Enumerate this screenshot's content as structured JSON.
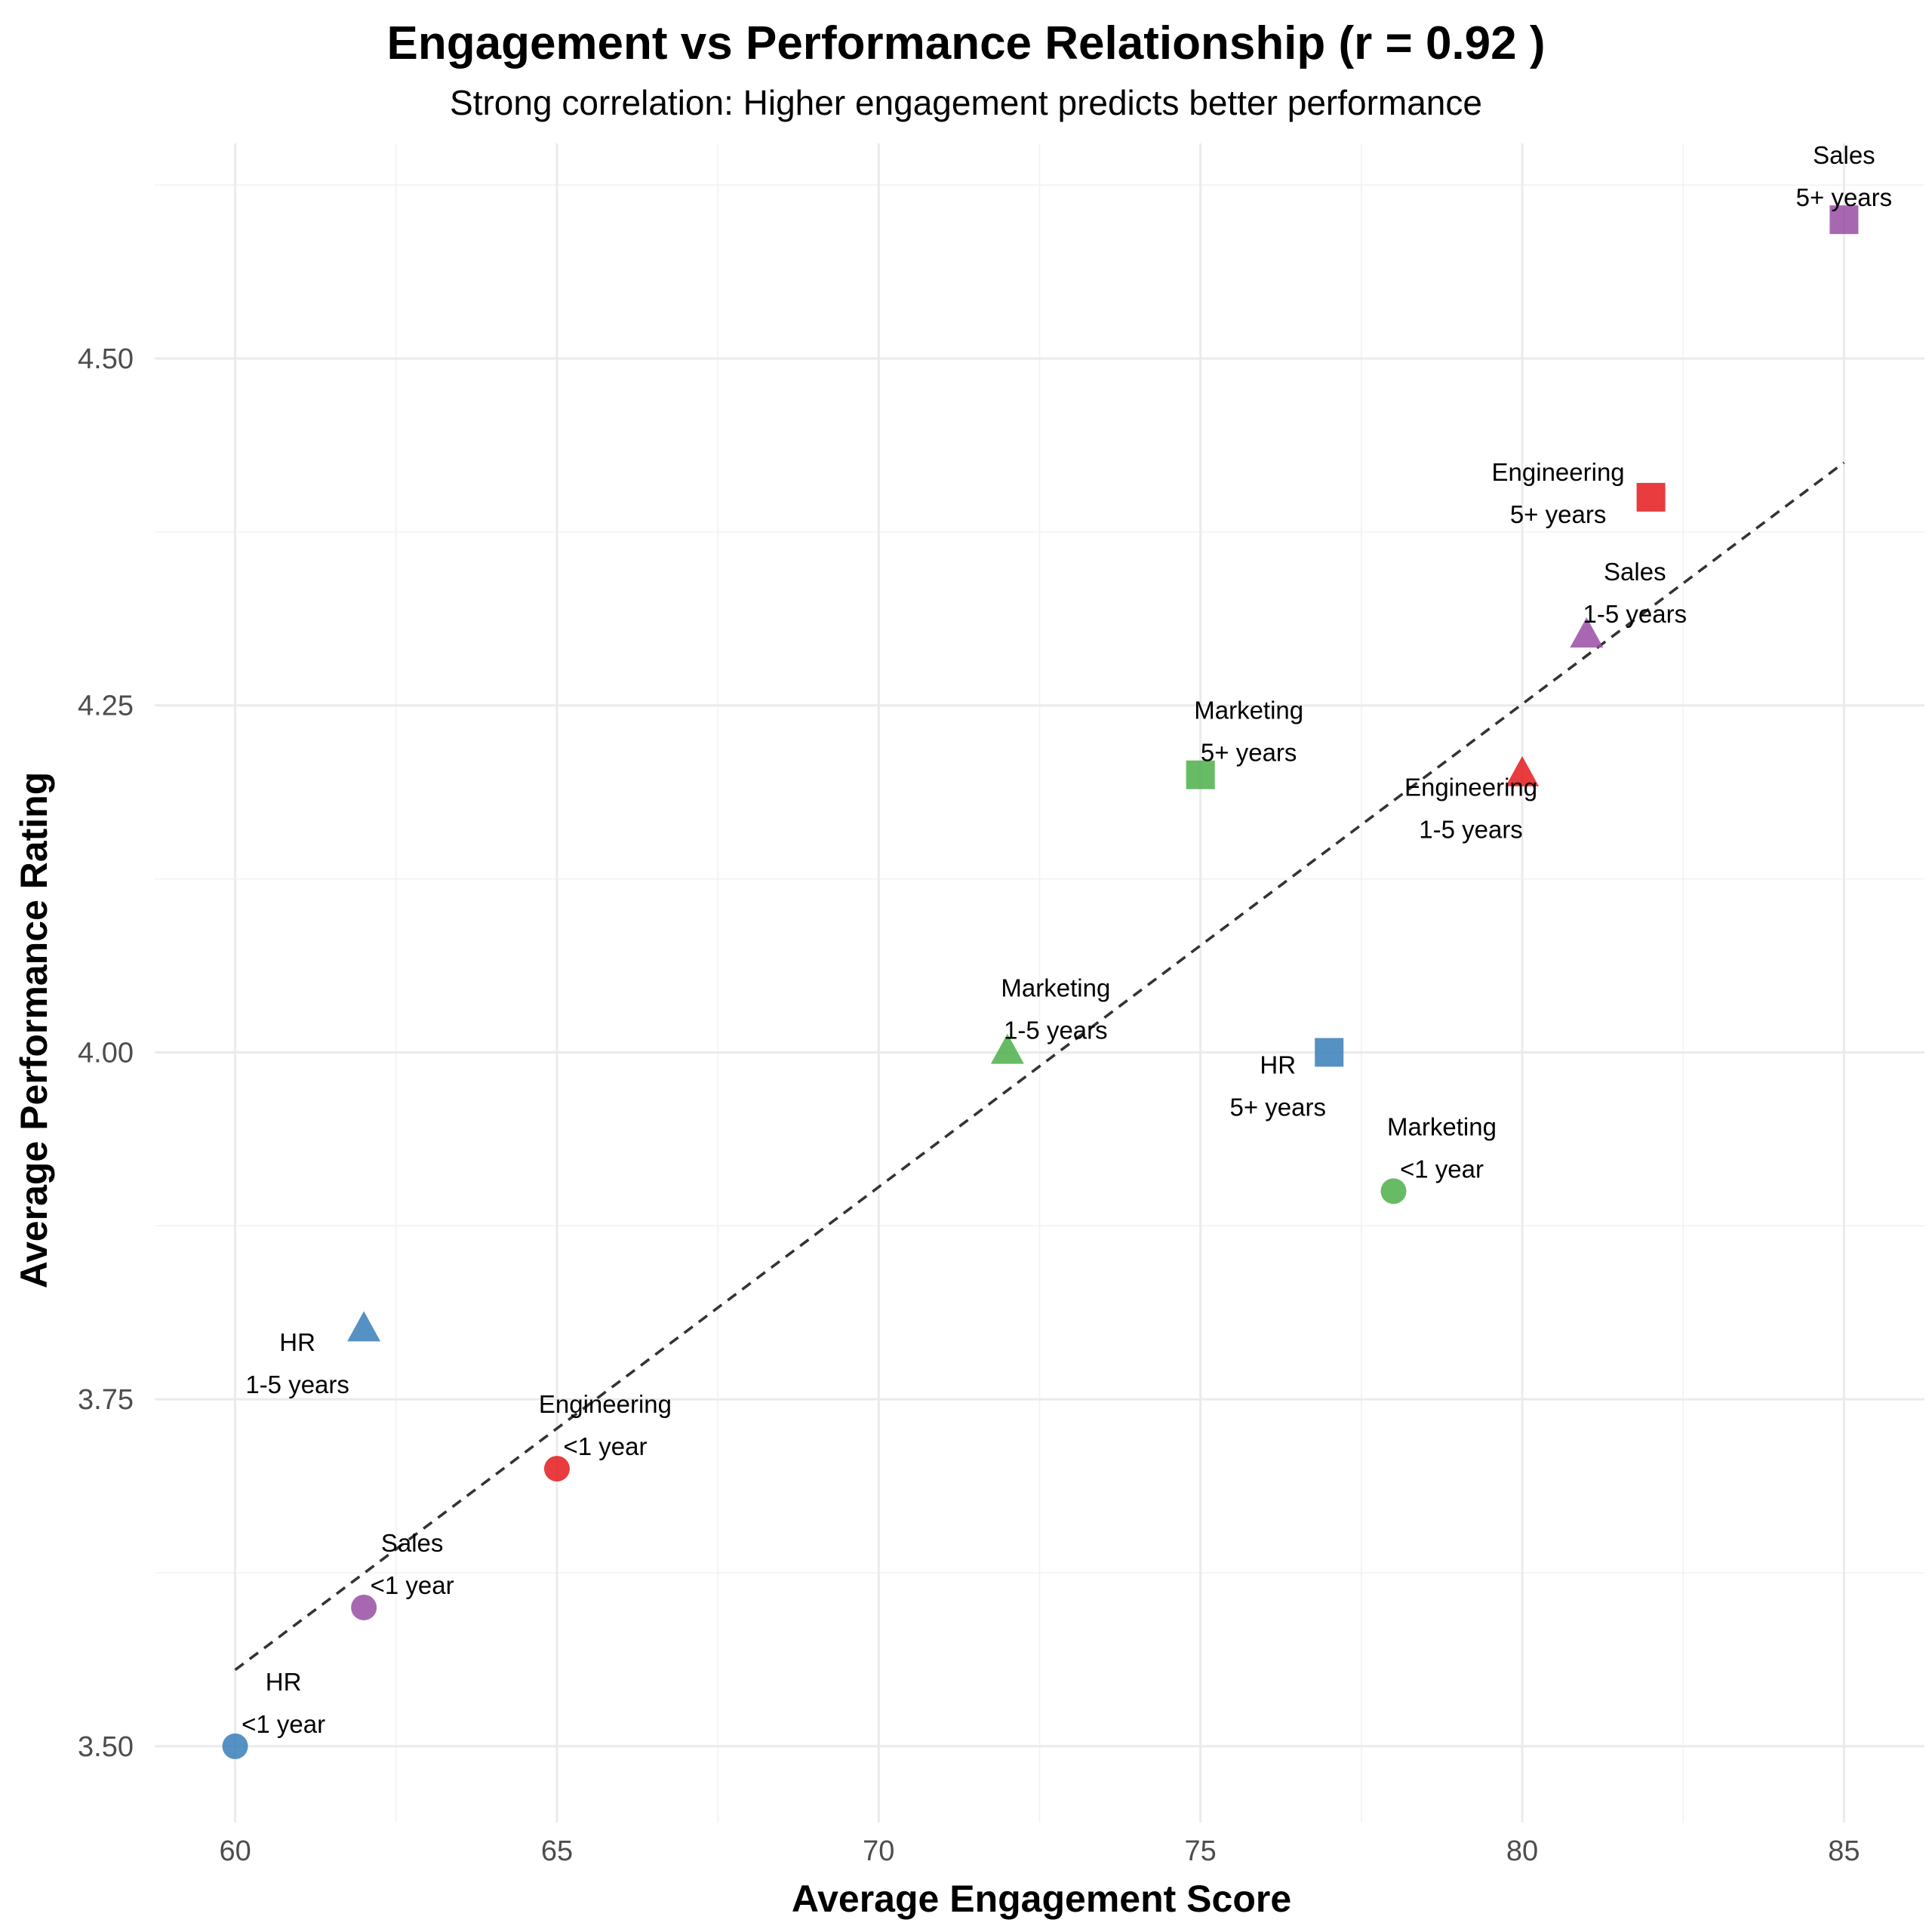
{
  "chart_data": {
    "type": "scatter",
    "title": "Engagement vs Performance Relationship (r = 0.92 )",
    "subtitle": "Strong correlation: Higher engagement predicts better performance",
    "xlabel": "Average Engagement Score",
    "ylabel": "Average Performance Rating",
    "xlim": [
      58.75,
      86.25
    ],
    "ylim": [
      3.445,
      4.655
    ],
    "x_ticks": [
      "60",
      "65",
      "70",
      "75",
      "80",
      "85"
    ],
    "y_ticks": [
      "3.50",
      "3.75",
      "4.00",
      "4.25",
      "4.50"
    ],
    "grid": true,
    "legend": "none",
    "colors": {
      "Engineering": "#e41a1c",
      "HR": "#377eb8",
      "Marketing": "#4daf4a",
      "Sales": "#984ea3"
    },
    "shapes": {
      "<1 year": "circle",
      "1-5 years": "triangle",
      "5+ years": "square"
    },
    "points": [
      {
        "department": "Engineering",
        "tenure": "<1 year",
        "x": 65,
        "y": 3.7
      },
      {
        "department": "Engineering",
        "tenure": "1-5 years",
        "x": 80,
        "y": 4.2
      },
      {
        "department": "Engineering",
        "tenure": "5+ years",
        "x": 82,
        "y": 4.4
      },
      {
        "department": "HR",
        "tenure": "<1 year",
        "x": 60,
        "y": 3.5
      },
      {
        "department": "HR",
        "tenure": "1-5 years",
        "x": 62,
        "y": 3.8
      },
      {
        "department": "HR",
        "tenure": "5+ years",
        "x": 77,
        "y": 4.0
      },
      {
        "department": "Marketing",
        "tenure": "<1 year",
        "x": 78,
        "y": 3.9
      },
      {
        "department": "Marketing",
        "tenure": "1-5 years",
        "x": 72,
        "y": 4.0
      },
      {
        "department": "Marketing",
        "tenure": "5+ years",
        "x": 75,
        "y": 4.2
      },
      {
        "department": "Sales",
        "tenure": "<1 year",
        "x": 62,
        "y": 3.6
      },
      {
        "department": "Sales",
        "tenure": "1-5 years",
        "x": 81,
        "y": 4.3
      },
      {
        "department": "Sales",
        "tenure": "5+ years",
        "x": 85,
        "y": 4.6
      }
    ],
    "trend_line": {
      "x": [
        60,
        85
      ],
      "y": [
        3.555,
        4.425
      ],
      "style": "dashed",
      "color": "#333333"
    }
  }
}
